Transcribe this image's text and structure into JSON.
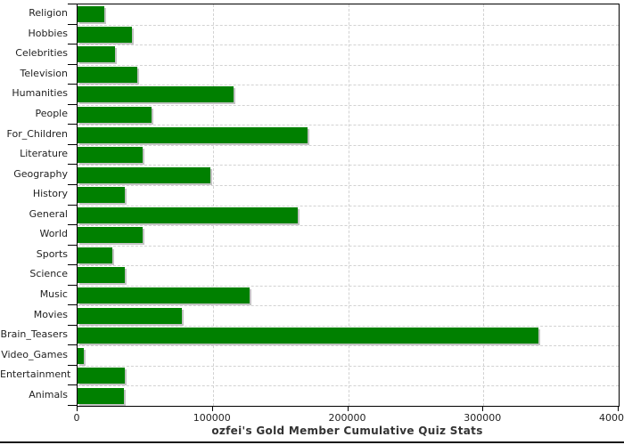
{
  "title": "ozfei's Gold Member Cumulative Quiz Stats",
  "colors": {
    "bar": "#008000",
    "bar_shadow": "#c3c3c3",
    "grid": "#d2d2d2",
    "axis": "#000000",
    "text": "#222222",
    "title_text": "#333333",
    "background": "#ffffff"
  },
  "chart_data": {
    "type": "bar",
    "orientation": "horizontal",
    "title": "ozfei's Gold Member Cumulative Quiz Stats",
    "xlabel": "",
    "ylabel": "",
    "xlim": [
      0,
      400000
    ],
    "xticks": [
      0,
      100000,
      200000,
      300000,
      400000
    ],
    "xtick_labels": [
      "0",
      "100000",
      "200000",
      "300000",
      "400000"
    ],
    "grid": true,
    "legend": "none",
    "categories": [
      "Religion",
      "Hobbies",
      "Celebrities",
      "Television",
      "Humanities",
      "People",
      "For_Children",
      "Literature",
      "Geography",
      "History",
      "General",
      "World",
      "Sports",
      "Science",
      "Music",
      "Movies",
      "Brain_Teasers",
      "Video_Games",
      "Entertainment",
      "Animals"
    ],
    "values": [
      20000,
      40000,
      28000,
      44000,
      115000,
      55000,
      170000,
      48000,
      98000,
      35000,
      163000,
      48000,
      26000,
      35000,
      127000,
      77000,
      341000,
      4500,
      35000,
      34000
    ]
  }
}
